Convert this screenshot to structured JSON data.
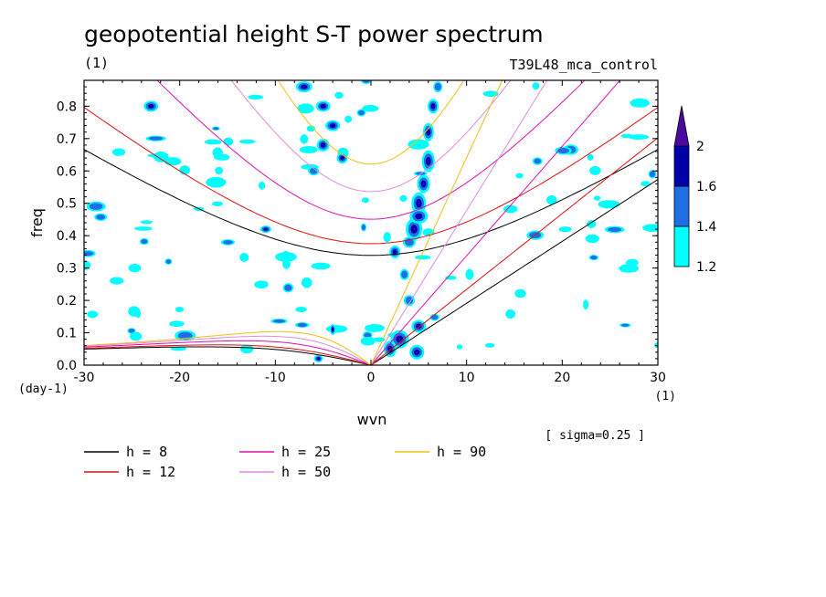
{
  "chart_data": {
    "type": "contour",
    "title": "geopotential height S-T power spectrum",
    "subtitle_left": "(1)",
    "subtitle_right": "T39L48_mca_control",
    "xlabel": "wvn",
    "ylabel": "freq",
    "x_unit": "(1)",
    "y_unit": "(day-1)",
    "xlim": [
      -30,
      30
    ],
    "ylim": [
      0,
      0.88
    ],
    "x_ticks": [
      -30,
      -20,
      -10,
      0,
      10,
      20,
      30
    ],
    "y_ticks": [
      0.0,
      0.1,
      0.2,
      0.3,
      0.4,
      0.5,
      0.6,
      0.7,
      0.8
    ],
    "note": "[ sigma=0.25 ]",
    "colorbar": {
      "levels": [
        1.2,
        1.4,
        1.6,
        2
      ],
      "colors": [
        "#00ffff",
        "#1e6ee6",
        "#0000aa",
        "#4a0aa0"
      ]
    },
    "dispersion_curves": [
      {
        "label": "h =  8",
        "color": "#000000"
      },
      {
        "label": "h = 12",
        "color": "#e01010"
      },
      {
        "label": "h = 25",
        "color": "#e010b0"
      },
      {
        "label": "h = 50",
        "color": "#e08ce0"
      },
      {
        "label": "h = 90",
        "color": "#f0c010"
      }
    ]
  }
}
